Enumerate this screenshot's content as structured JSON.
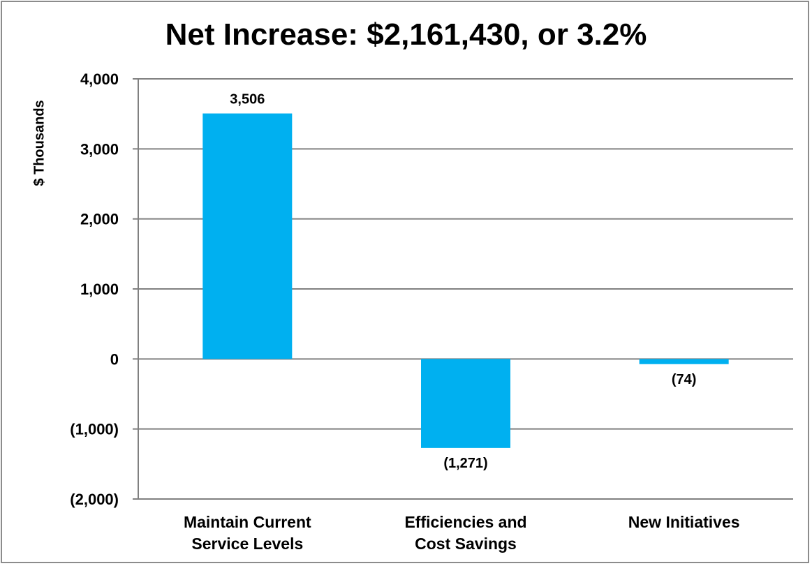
{
  "chart_data": {
    "type": "bar",
    "title": "Net Increase: $2,161,430, or 3.2%",
    "ylabel": "$ Thousands",
    "xlabel": "",
    "categories": [
      [
        "Maintain Current",
        "Service Levels"
      ],
      [
        "Efficiencies and",
        "Cost Savings"
      ],
      [
        "New Initiatives"
      ]
    ],
    "values": [
      3506,
      -1271,
      -74
    ],
    "data_labels": [
      "3,506",
      "(1,271)",
      "(74)"
    ],
    "ylim": [
      -2000,
      4000
    ],
    "yticks": [
      4000,
      3000,
      2000,
      1000,
      0,
      -1000,
      -2000
    ],
    "ytick_labels": [
      "4,000",
      "3,000",
      "2,000",
      "1,000",
      "0",
      "(1,000)",
      "(2,000)"
    ],
    "grid": true,
    "legend": "none",
    "bar_color": "#00b0f0",
    "gridline_color": "#808080"
  }
}
